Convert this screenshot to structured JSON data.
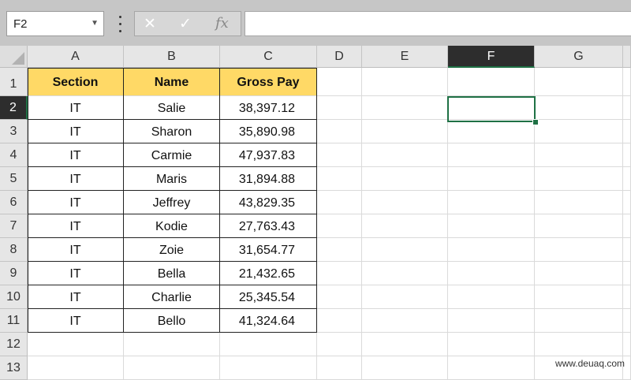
{
  "name_box": {
    "value": "F2"
  },
  "formula_bar": {
    "cancel_icon": "✕",
    "enter_icon": "✓",
    "fx_label": "fx",
    "value": ""
  },
  "columns": [
    "A",
    "B",
    "C",
    "D",
    "E",
    "F",
    "G"
  ],
  "rows": [
    "1",
    "2",
    "3",
    "4",
    "5",
    "6",
    "7",
    "8",
    "9",
    "10",
    "11",
    "12",
    "13"
  ],
  "selected_cell": {
    "column": "F",
    "row": "2"
  },
  "table": {
    "headers": [
      "Section",
      "Name",
      "Gross Pay"
    ],
    "header_fill": "#ffd966",
    "rows": [
      [
        "IT",
        "Salie",
        "38,397.12"
      ],
      [
        "IT",
        "Sharon",
        "35,890.98"
      ],
      [
        "IT",
        "Carmie",
        "47,937.83"
      ],
      [
        "IT",
        "Maris",
        "31,894.88"
      ],
      [
        "IT",
        "Jeffrey",
        "43,829.35"
      ],
      [
        "IT",
        "Kodie",
        "27,763.43"
      ],
      [
        "IT",
        "Zoie",
        "31,654.77"
      ],
      [
        "IT",
        "Bella",
        "21,432.65"
      ],
      [
        "IT",
        "Charlie",
        "25,345.54"
      ],
      [
        "IT",
        "Bello",
        "41,324.64"
      ]
    ]
  },
  "watermark": "www.deuaq.com",
  "colors": {
    "selection_accent": "#1f7145",
    "selected_header_bg": "#2d2d2d"
  }
}
